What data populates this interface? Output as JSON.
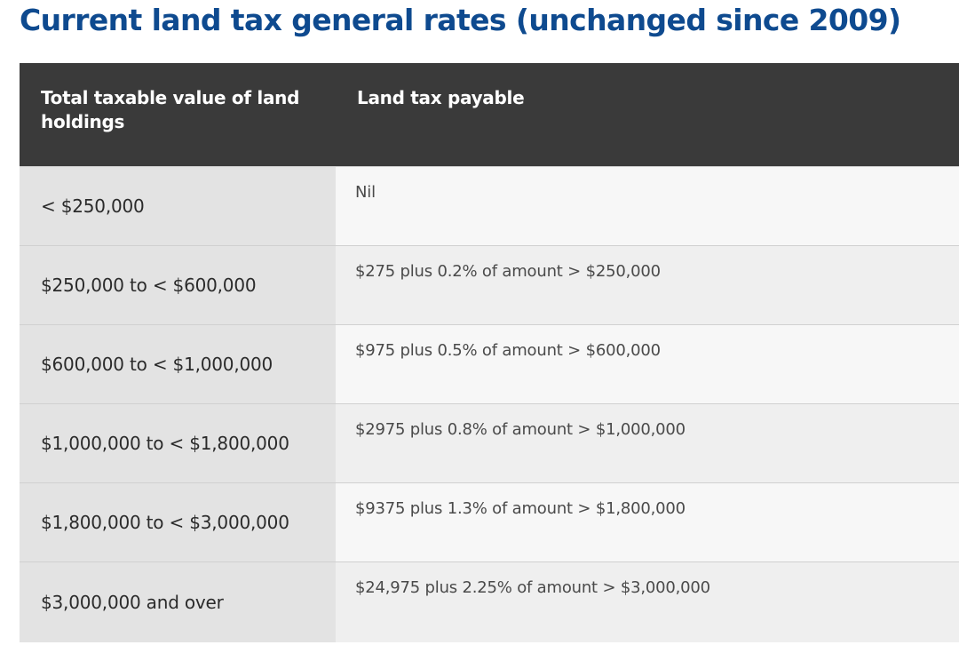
{
  "title": "Current land tax general rates (unchanged since 2009)",
  "table": {
    "headers": [
      "Total taxable value of land holdings",
      "Land tax payable"
    ],
    "rows": [
      {
        "value": "< $250,000",
        "payable": "Nil"
      },
      {
        "value": "$250,000 to < $600,000",
        "payable": "$275 plus 0.2% of amount > $250,000"
      },
      {
        "value": "$600,000 to < $1,000,000",
        "payable": "$975 plus 0.5% of amount > $600,000"
      },
      {
        "value": "$1,000,000 to < $1,800,000",
        "payable": "$2975 plus 0.8% of amount > $1,000,000"
      },
      {
        "value": "$1,800,000 to < $3,000,000",
        "payable": "$9375 plus 1.3% of amount > $1,800,000"
      },
      {
        "value": "$3,000,000 and over",
        "payable": "$24,975 plus 2.25% of amount > $3,000,000"
      }
    ]
  },
  "colors": {
    "title": "#0e4a8f",
    "header_background": "#3a3a3a",
    "value_column_background": "#e3e3e3",
    "payable_column_background": "#f7f7f7"
  }
}
